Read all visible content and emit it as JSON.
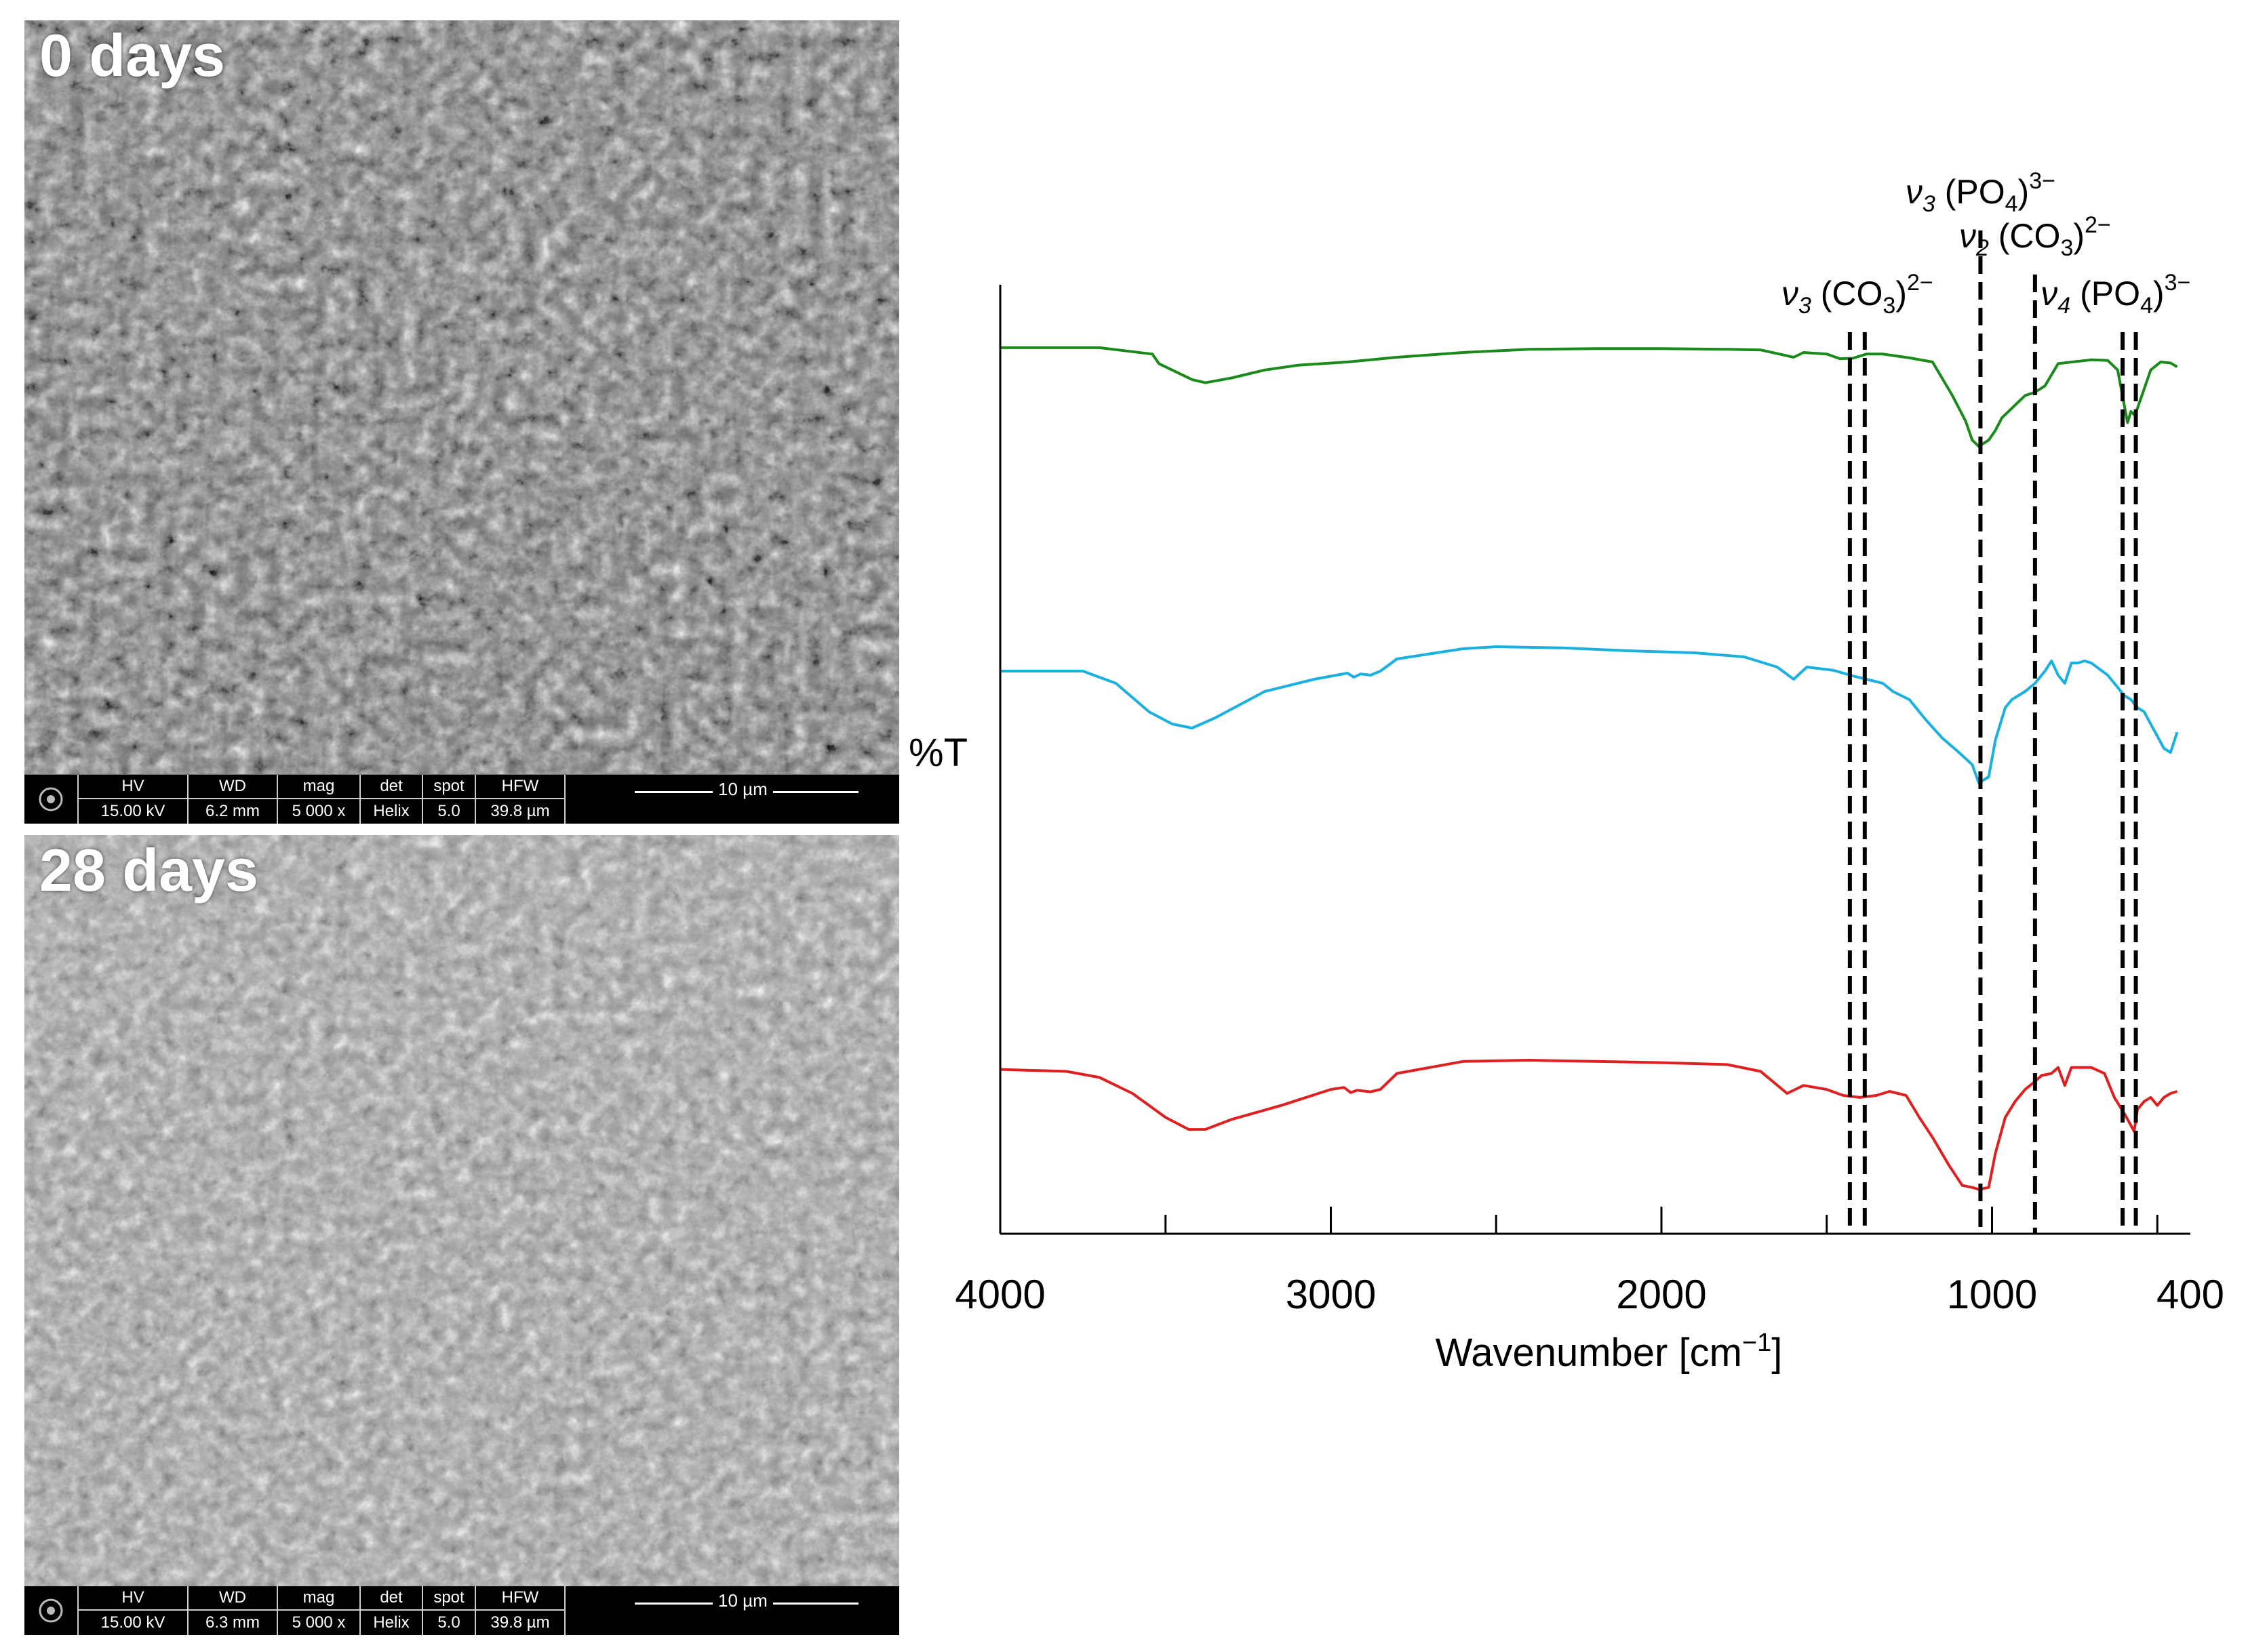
{
  "sem_panels": [
    {
      "label": "0 days",
      "databar": {
        "headers": [
          "HV",
          "WD",
          "mag",
          "det",
          "spot",
          "HFW"
        ],
        "values": [
          "15.00 kV",
          "6.2 mm",
          "5 000 x",
          "Helix",
          "5.0",
          "39.8 µm"
        ],
        "scale_bar": "10 µm"
      }
    },
    {
      "label": "28 days",
      "databar": {
        "headers": [
          "HV",
          "WD",
          "mag",
          "det",
          "spot",
          "HFW"
        ],
        "values": [
          "15.00 kV",
          "6.3 mm",
          "5 000 x",
          "Helix",
          "5.0",
          "39.8 µm"
        ],
        "scale_bar": "10 µm"
      }
    }
  ],
  "chart_data": {
    "type": "line",
    "xlabel": "Wavenumber [cm",
    "xlabel_sup": "−1",
    "xlabel_close": "]",
    "ylabel": "%T",
    "x_reversed": true,
    "xlim": [
      4000,
      400
    ],
    "x_ticks": [
      4000,
      3000,
      2000,
      1000,
      400
    ],
    "ylim": [
      0,
      100
    ],
    "y_ticks_shown": false,
    "grid": false,
    "series": [
      {
        "color": "#1a8a1a",
        "points": [
          [
            4000,
            93
          ],
          [
            3700,
            93
          ],
          [
            3540,
            91
          ],
          [
            3520,
            88
          ],
          [
            3480,
            86
          ],
          [
            3420,
            83
          ],
          [
            3380,
            82
          ],
          [
            3300,
            83.5
          ],
          [
            3200,
            86
          ],
          [
            3100,
            87.5
          ],
          [
            2950,
            88.5
          ],
          [
            2800,
            90
          ],
          [
            2600,
            91.5
          ],
          [
            2400,
            92.5
          ],
          [
            2200,
            92.7
          ],
          [
            2000,
            92.7
          ],
          [
            1800,
            92.5
          ],
          [
            1700,
            92.3
          ],
          [
            1600,
            90
          ],
          [
            1570,
            91.5
          ],
          [
            1500,
            91
          ],
          [
            1460,
            89.5
          ],
          [
            1420,
            89.7
          ],
          [
            1380,
            91
          ],
          [
            1330,
            91
          ],
          [
            1250,
            89.8
          ],
          [
            1180,
            88.5
          ],
          [
            1120,
            78
          ],
          [
            1080,
            70
          ],
          [
            1060,
            64
          ],
          [
            1040,
            62
          ],
          [
            1010,
            64
          ],
          [
            990,
            67
          ],
          [
            970,
            71
          ],
          [
            940,
            74
          ],
          [
            900,
            78
          ],
          [
            870,
            79
          ],
          [
            840,
            81
          ],
          [
            800,
            88
          ],
          [
            700,
            89.2
          ],
          [
            650,
            89
          ],
          [
            620,
            86
          ],
          [
            600,
            75
          ],
          [
            590,
            69.5
          ],
          [
            580,
            73
          ],
          [
            570,
            72
          ],
          [
            560,
            74
          ],
          [
            540,
            80
          ],
          [
            520,
            86
          ],
          [
            490,
            88.5
          ],
          [
            460,
            88.2
          ],
          [
            440,
            87
          ]
        ]
      },
      {
        "color": "#1ab0e0",
        "points": [
          [
            4000,
            65
          ],
          [
            3750,
            65
          ],
          [
            3650,
            62
          ],
          [
            3550,
            55
          ],
          [
            3480,
            52
          ],
          [
            3420,
            51
          ],
          [
            3350,
            53.5
          ],
          [
            3200,
            60
          ],
          [
            3050,
            63
          ],
          [
            2950,
            64.5
          ],
          [
            2930,
            63.5
          ],
          [
            2910,
            64.3
          ],
          [
            2880,
            64
          ],
          [
            2850,
            65
          ],
          [
            2800,
            68
          ],
          [
            2600,
            70.5
          ],
          [
            2500,
            71
          ],
          [
            2300,
            70.7
          ],
          [
            2100,
            70
          ],
          [
            1900,
            69.5
          ],
          [
            1750,
            68.5
          ],
          [
            1650,
            66
          ],
          [
            1600,
            63
          ],
          [
            1560,
            66
          ],
          [
            1480,
            65.2
          ],
          [
            1420,
            63.8
          ],
          [
            1380,
            63
          ],
          [
            1330,
            62
          ],
          [
            1300,
            60
          ],
          [
            1250,
            58
          ],
          [
            1200,
            53
          ],
          [
            1150,
            48.5
          ],
          [
            1100,
            45
          ],
          [
            1060,
            42
          ],
          [
            1040,
            37.5
          ],
          [
            1010,
            39
          ],
          [
            990,
            48
          ],
          [
            960,
            56
          ],
          [
            940,
            58
          ],
          [
            900,
            60
          ],
          [
            870,
            62
          ],
          [
            840,
            65
          ],
          [
            820,
            67.5
          ],
          [
            800,
            64
          ],
          [
            780,
            62
          ],
          [
            760,
            67
          ],
          [
            740,
            67
          ],
          [
            720,
            67.5
          ],
          [
            700,
            67
          ],
          [
            650,
            64
          ],
          [
            620,
            61
          ],
          [
            600,
            59
          ],
          [
            580,
            58
          ],
          [
            560,
            56
          ],
          [
            540,
            55
          ],
          [
            520,
            52
          ],
          [
            500,
            49
          ],
          [
            480,
            46
          ],
          [
            460,
            45
          ],
          [
            440,
            50
          ]
        ]
      },
      {
        "color": "#e02020",
        "points": [
          [
            4000,
            36
          ],
          [
            3800,
            35.5
          ],
          [
            3700,
            34
          ],
          [
            3600,
            30
          ],
          [
            3500,
            24
          ],
          [
            3430,
            21
          ],
          [
            3380,
            21
          ],
          [
            3300,
            23.5
          ],
          [
            3150,
            27
          ],
          [
            3000,
            31
          ],
          [
            2960,
            31.5
          ],
          [
            2940,
            30.2
          ],
          [
            2920,
            30.8
          ],
          [
            2880,
            30.4
          ],
          [
            2850,
            31
          ],
          [
            2800,
            35
          ],
          [
            2600,
            38
          ],
          [
            2400,
            38.3
          ],
          [
            2200,
            38
          ],
          [
            2000,
            37.7
          ],
          [
            1800,
            37.2
          ],
          [
            1700,
            35.5
          ],
          [
            1620,
            30
          ],
          [
            1570,
            32
          ],
          [
            1500,
            31
          ],
          [
            1450,
            29.5
          ],
          [
            1400,
            29
          ],
          [
            1350,
            29.5
          ],
          [
            1310,
            30.5
          ],
          [
            1260,
            29.5
          ],
          [
            1220,
            24
          ],
          [
            1180,
            19
          ],
          [
            1130,
            12
          ],
          [
            1090,
            7
          ],
          [
            1060,
            6.5
          ],
          [
            1040,
            6
          ],
          [
            1010,
            6.5
          ],
          [
            990,
            15
          ],
          [
            960,
            24
          ],
          [
            930,
            28
          ],
          [
            900,
            31
          ],
          [
            870,
            33
          ],
          [
            850,
            34.5
          ],
          [
            820,
            35
          ],
          [
            800,
            36.5
          ],
          [
            780,
            32
          ],
          [
            760,
            36.5
          ],
          [
            700,
            36.5
          ],
          [
            660,
            35
          ],
          [
            630,
            29
          ],
          [
            600,
            25
          ],
          [
            580,
            22
          ],
          [
            570,
            20.5
          ],
          [
            560,
            26
          ],
          [
            540,
            28
          ],
          [
            520,
            29
          ],
          [
            500,
            27
          ],
          [
            480,
            29
          ],
          [
            460,
            30
          ],
          [
            440,
            30.5
          ]
        ]
      }
    ],
    "annotations": [
      {
        "label_main": "ν",
        "label_sub": "3",
        "label_group": " (CO",
        "group_sub": "3",
        "group_close": ")",
        "charge": "2−",
        "x_values": [
          1430,
          1385
        ]
      },
      {
        "label_main": "ν",
        "label_sub": "3",
        "label_group": " (PO",
        "group_sub": "4",
        "group_close": ")",
        "charge": "3−",
        "x_values": [
          1035
        ]
      },
      {
        "label_main": "ν",
        "label_sub": "2",
        "label_group": " (CO",
        "group_sub": "3",
        "group_close": ")",
        "charge": "2−",
        "x_values": [
          870
        ]
      },
      {
        "label_main": "ν",
        "label_sub": "4",
        "label_group": " (PO",
        "group_sub": "4",
        "group_close": ")",
        "charge": "3−",
        "x_values": [
          605,
          565
        ]
      }
    ]
  }
}
